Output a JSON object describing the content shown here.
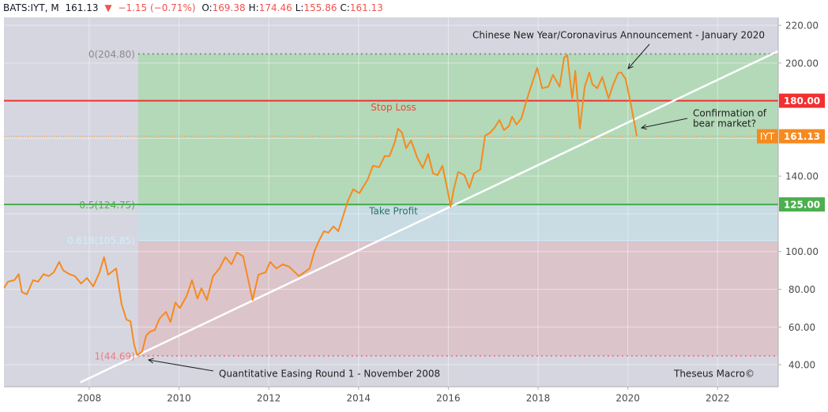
{
  "header": {
    "symbol": "BATS:IYT, M",
    "last": "161.13",
    "change": "−1.15 (−0.71%)",
    "ohlc": [
      {
        "label": "O:",
        "value": "169.38"
      },
      {
        "label": "H:",
        "value": "174.46"
      },
      {
        "label": "L:",
        "value": "155.86"
      },
      {
        "label": "C:",
        "value": "161.13"
      }
    ]
  },
  "chart_data": {
    "type": "line",
    "xlim": [
      2006.1,
      2023.35
    ],
    "xticks": [
      2008,
      2010,
      2012,
      2014,
      2016,
      2018,
      2020,
      2022
    ],
    "ylim": [
      28.3,
      224.2
    ],
    "yticks": [
      {
        "value": 40,
        "label": "40.00"
      },
      {
        "value": 60,
        "label": "60.00"
      },
      {
        "value": 80,
        "label": "80.00"
      },
      {
        "value": 100,
        "label": "100.00"
      },
      {
        "value": 120,
        "label": "120.00"
      },
      {
        "value": 140,
        "label": "140.00"
      },
      {
        "value": 160,
        "label": "160.00"
      },
      {
        "value": 180,
        "label": "180.00"
      },
      {
        "value": 200,
        "label": "200.00"
      },
      {
        "value": 220,
        "label": "220.00"
      }
    ],
    "grid": true,
    "series": [
      {
        "name": "IYT",
        "color": "#f68a1e",
        "x": [
          2006.1,
          2006.19,
          2006.33,
          2006.43,
          2006.5,
          2006.61,
          2006.75,
          2006.86,
          2006.98,
          2007.1,
          2007.21,
          2007.33,
          2007.42,
          2007.56,
          2007.68,
          2007.82,
          2007.95,
          2008.09,
          2008.23,
          2008.33,
          2008.42,
          2008.6,
          2008.72,
          2008.83,
          2008.92,
          2009.0,
          2009.07,
          2009.18,
          2009.27,
          2009.36,
          2009.46,
          2009.57,
          2009.71,
          2009.81,
          2009.92,
          2010.02,
          2010.17,
          2010.29,
          2010.41,
          2010.5,
          2010.62,
          2010.76,
          2010.9,
          2011.03,
          2011.17,
          2011.29,
          2011.43,
          2011.64,
          2011.77,
          2011.93,
          2012.03,
          2012.17,
          2012.31,
          2012.45,
          2012.67,
          2012.79,
          2012.91,
          2013.02,
          2013.12,
          2013.23,
          2013.33,
          2013.44,
          2013.55,
          2013.65,
          2013.76,
          2013.88,
          2014.02,
          2014.2,
          2014.32,
          2014.46,
          2014.58,
          2014.69,
          2014.81,
          2014.88,
          2014.97,
          2015.06,
          2015.17,
          2015.31,
          2015.43,
          2015.55,
          2015.66,
          2015.76,
          2015.87,
          2015.98,
          2016.05,
          2016.12,
          2016.22,
          2016.36,
          2016.47,
          2016.57,
          2016.71,
          2016.82,
          2016.93,
          2017.03,
          2017.14,
          2017.24,
          2017.35,
          2017.42,
          2017.52,
          2017.63,
          2017.74,
          2017.84,
          2017.98,
          2018.09,
          2018.23,
          2018.33,
          2018.48,
          2018.58,
          2018.65,
          2018.76,
          2018.83,
          2018.93,
          2019.04,
          2019.14,
          2019.21,
          2019.32,
          2019.43,
          2019.57,
          2019.67,
          2019.78,
          2019.85,
          2019.95,
          2020.06,
          2020.17,
          2020.2
        ],
        "values": [
          80.6,
          84,
          84.8,
          88,
          78.5,
          77.3,
          84.8,
          84,
          88,
          87,
          89,
          94.5,
          90,
          88,
          87,
          83,
          86,
          81.5,
          89,
          97,
          87.7,
          91,
          72.2,
          63.9,
          63,
          50.5,
          45,
          47,
          55.5,
          57.6,
          58.4,
          64.6,
          68,
          62.6,
          73,
          70,
          76.4,
          84.8,
          75,
          80.6,
          74.3,
          87,
          91,
          97,
          93.2,
          99.5,
          97.4,
          74.3,
          87.7,
          89,
          94.5,
          91,
          93.2,
          92,
          87,
          89,
          91,
          100.3,
          105.8,
          110.8,
          110,
          113.3,
          110.8,
          118.3,
          126.7,
          133,
          131,
          138,
          145.5,
          144.7,
          150.6,
          150.6,
          158.1,
          165.2,
          163,
          154.8,
          158.9,
          149.7,
          144.3,
          151.8,
          141.4,
          140.5,
          145.5,
          133,
          123.8,
          133,
          142.2,
          140.5,
          133.8,
          141.4,
          143.5,
          161.5,
          163,
          165.7,
          169.8,
          164.4,
          166.5,
          171.5,
          167.3,
          170.7,
          179.9,
          187.4,
          197.5,
          186.6,
          187.4,
          193.7,
          187.4,
          202.9,
          204.2,
          181.2,
          195.8,
          165.2,
          187.4,
          195,
          188.7,
          186.6,
          192.5,
          181.2,
          188.3,
          194.6,
          195,
          191.6,
          179,
          165.2,
          161.13
        ]
      }
    ],
    "price_line": {
      "name": "IYT",
      "value": 161.13,
      "value_label": "161.13",
      "color": "#f68a1e"
    },
    "hlines": {
      "names": [
        "Stop Loss",
        "Take Profit"
      ],
      "values": [
        180,
        125
      ],
      "value_labels": [
        "180.00",
        "125.00"
      ],
      "colors": [
        "#f23030",
        "#4caf50"
      ],
      "text_colors": [
        "#f44336",
        "#26766a"
      ]
    },
    "fib": {
      "start": 2009.09,
      "prices": [
        204.8,
        124.75,
        105.85,
        44.69
      ],
      "labels": [
        "0(204.80)",
        "0.5(124.75)",
        "0.618(105.85)",
        "1(44.69)"
      ],
      "label_colors": [
        "#8a8a8a",
        "#4caf50",
        "#c6f3ff",
        "#ef7b7b"
      ],
      "zone_colors": [
        "#b3d9b9",
        "#c9dbe3",
        "#dcc4cb"
      ]
    },
    "trendline": {
      "x": [
        2007.8,
        2023.35
      ],
      "values": [
        30.6,
        206.3
      ],
      "color": "#ffffff"
    },
    "annotations": [
      "Chinese New Year/Coronavirus Announcement - January 2020",
      "Confirmation of",
      "bear market?",
      "Quantitative Easing Round 1 - November 2008",
      "Theseus Macro©"
    ]
  }
}
